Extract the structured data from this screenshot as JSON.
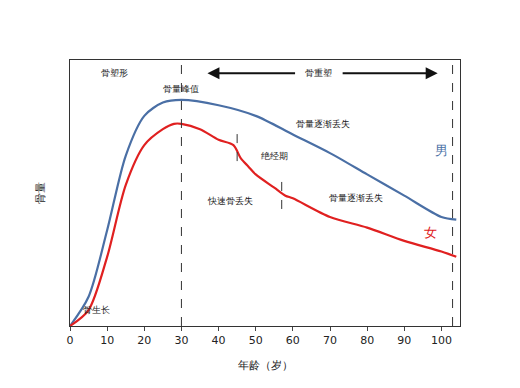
{
  "chart_data": {
    "type": "line",
    "x_label": "年龄（岁）",
    "y_label": "骨量",
    "xlim": [
      0,
      105
    ],
    "xticks": [
      0,
      10,
      20,
      30,
      40,
      50,
      60,
      70,
      80,
      90,
      100
    ],
    "ylim": [
      0,
      100
    ],
    "tick_labels": "x",
    "grid": false,
    "series": [
      {
        "name": "男",
        "color": "#4a6fa5",
        "label_at": [
          100,
          66
        ],
        "x": [
          0,
          5,
          10,
          15,
          20,
          25,
          30,
          40,
          50,
          60,
          70,
          80,
          90,
          100,
          104
        ],
        "values": [
          0,
          11,
          36,
          64,
          79,
          84,
          85,
          83,
          79,
          72,
          65,
          57,
          49,
          41,
          40
        ]
      },
      {
        "name": "女",
        "color": "#e02020",
        "label_at": [
          97,
          35
        ],
        "x": [
          0,
          5,
          10,
          15,
          20,
          25,
          28,
          30,
          35,
          40,
          44,
          46,
          48,
          50,
          55,
          58,
          60,
          70,
          80,
          90,
          100,
          104
        ],
        "values": [
          0,
          6,
          26,
          53,
          68,
          74,
          76,
          76,
          74,
          70,
          68,
          63,
          60,
          57,
          52,
          49,
          48,
          41,
          37,
          32,
          28,
          26
        ]
      }
    ],
    "vlines": [
      30,
      103
    ],
    "short_marks": [
      {
        "x": 45,
        "y": [
          62,
          75
        ]
      },
      {
        "x": 57,
        "y": [
          44,
          56
        ]
      }
    ],
    "arrows": [
      {
        "from": [
          61,
          95
        ],
        "to": [
          37,
          95
        ]
      },
      {
        "from": [
          73,
          95
        ],
        "to": [
          99,
          95
        ]
      }
    ],
    "annotations": [
      {
        "text": "骨塑形",
        "x": 12,
        "y": 95
      },
      {
        "text": "骨重塑",
        "x": 67,
        "y": 95
      },
      {
        "text": "骨量峰值",
        "x": 30,
        "y": 89
      },
      {
        "text": "骨量逐渐丢失",
        "x": 68,
        "y": 76
      },
      {
        "text": "绝经期",
        "x": 55,
        "y": 64
      },
      {
        "text": "快速骨丢失",
        "x": 43,
        "y": 47
      },
      {
        "text": "骨量逐渐丢失",
        "x": 77,
        "y": 48
      },
      {
        "text": "骨生长",
        "x": 7,
        "y": 6
      }
    ]
  }
}
